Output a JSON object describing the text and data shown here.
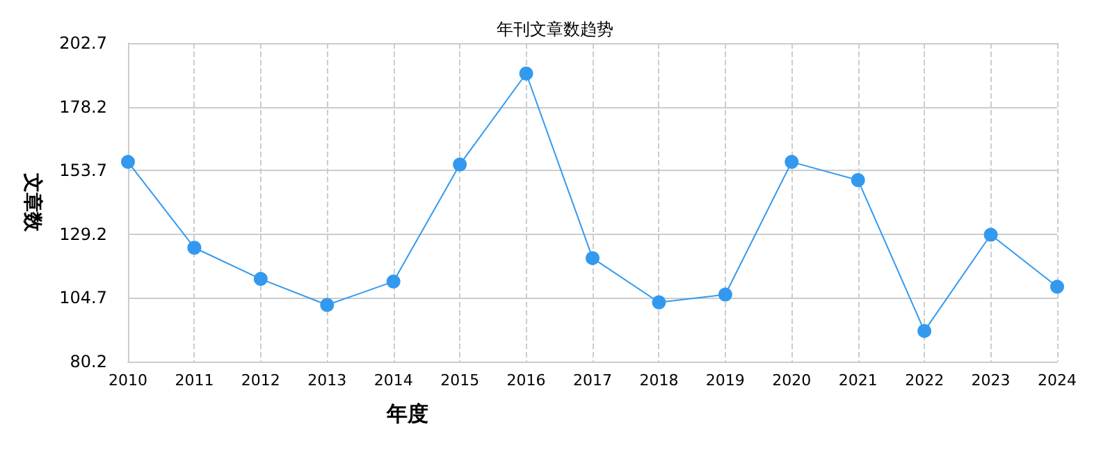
{
  "chart_data": {
    "type": "line",
    "title": "年刊文章数趋势",
    "xlabel": "年度",
    "ylabel": "文章数",
    "categories": [
      "2010",
      "2011",
      "2012",
      "2013",
      "2014",
      "2015",
      "2016",
      "2017",
      "2018",
      "2019",
      "2020",
      "2021",
      "2022",
      "2023",
      "2024"
    ],
    "series": [
      {
        "color": "#3399ee",
        "values": [
          157,
          124,
          112,
          102,
          111,
          156,
          191,
          120,
          103,
          106,
          157,
          150,
          92,
          129,
          109
        ]
      }
    ],
    "ylim": [
      80.2,
      202.7
    ],
    "yticks": [
      80.2,
      104.7,
      129.2,
      153.7,
      178.2,
      202.7
    ],
    "grid": true,
    "marker": "circle",
    "line_style": "solid"
  }
}
